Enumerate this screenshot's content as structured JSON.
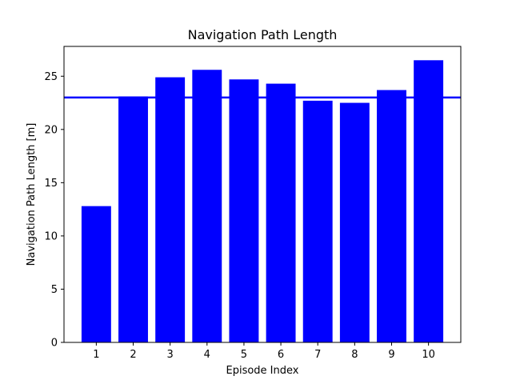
{
  "chart_data": {
    "type": "bar",
    "title": "Navigation Path Length",
    "xlabel": "Episode Index",
    "ylabel": "Navigation Path Length [m]",
    "categories": [
      "1",
      "2",
      "3",
      "4",
      "5",
      "6",
      "7",
      "8",
      "9",
      "10"
    ],
    "values": [
      12.8,
      23.1,
      24.9,
      25.6,
      24.7,
      24.3,
      22.7,
      22.5,
      23.7,
      26.5
    ],
    "reference_line": 23.0,
    "ylim": [
      0,
      27.8
    ],
    "yticks": [
      0,
      5,
      10,
      15,
      20,
      25
    ],
    "grid": false,
    "bar_color": "#0000ff",
    "line_color": "#0000ff"
  }
}
